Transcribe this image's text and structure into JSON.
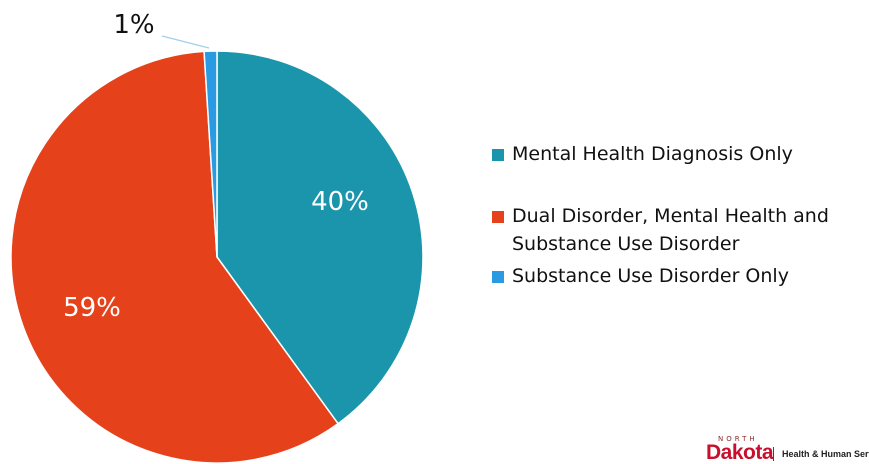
{
  "chart_data": {
    "type": "pie",
    "slices": [
      {
        "label": "Mental Health Diagnosis Only",
        "value": 40,
        "display": "40%",
        "color": "#1a95ab"
      },
      {
        "label": "Dual Disorder, Mental Health and Substance Use Disorder",
        "value": 59,
        "display": "59%",
        "color": "#e5421c"
      },
      {
        "label": "Substance Use Disorder Only",
        "value": 1,
        "display": "1%",
        "color": "#2a9be3"
      }
    ],
    "legend": {
      "placement": "right",
      "items": [
        {
          "line1": "Mental Health Diagnosis Only",
          "line2": "",
          "color": "#1a95ab"
        },
        {
          "line1": "Dual Disorder, Mental Health and",
          "line2": "Substance Use Disorder",
          "color": "#e5421c"
        },
        {
          "line1": "Substance Use Disorder Only",
          "line2": "",
          "color": "#2a9be3"
        }
      ]
    }
  },
  "logo": {
    "north": "NORTH",
    "name": "Dakota",
    "tagline": "Health & Human Services"
  }
}
